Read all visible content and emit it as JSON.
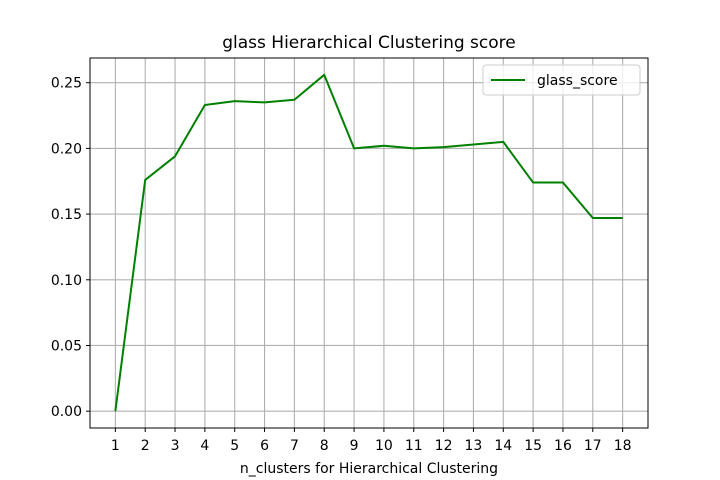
{
  "chart_data": {
    "type": "line",
    "title": "glass Hierarchical Clustering score",
    "xlabel": "n_clusters for Hierarchical Clustering",
    "ylabel": "",
    "x": [
      1,
      2,
      3,
      4,
      5,
      6,
      7,
      8,
      9,
      10,
      11,
      12,
      13,
      14,
      15,
      16,
      17,
      18
    ],
    "series": [
      {
        "name": "glass_score",
        "color": "#008000",
        "values": [
          0.0,
          0.176,
          0.194,
          0.233,
          0.236,
          0.235,
          0.237,
          0.256,
          0.2,
          0.202,
          0.2,
          0.201,
          0.203,
          0.205,
          0.174,
          0.174,
          0.147,
          0.147
        ]
      }
    ],
    "xlim": [
      0.15,
      18.85
    ],
    "ylim": [
      -0.0128,
      0.2688
    ],
    "yticks": [
      "0.00",
      "0.05",
      "0.10",
      "0.15",
      "0.20",
      "0.25"
    ],
    "xticks": [
      "1",
      "2",
      "3",
      "4",
      "5",
      "6",
      "7",
      "8",
      "9",
      "10",
      "11",
      "12",
      "13",
      "14",
      "15",
      "16",
      "17",
      "18"
    ],
    "grid": true,
    "legend_position": "top-right"
  }
}
